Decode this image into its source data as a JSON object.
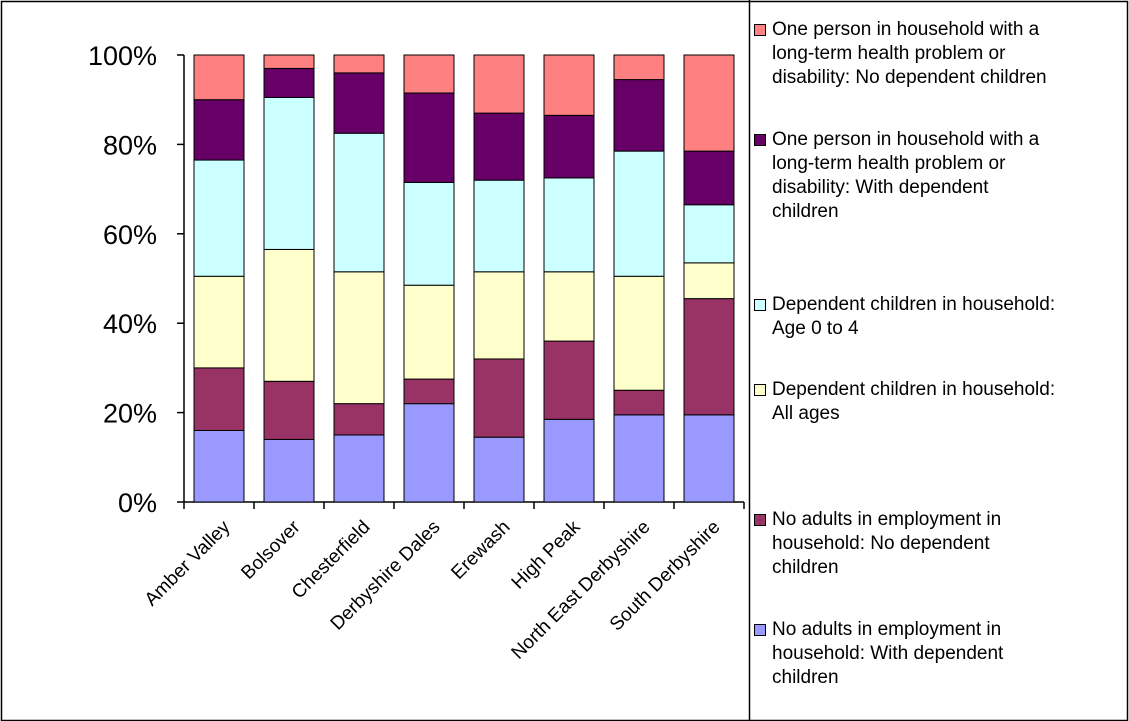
{
  "chart_data": {
    "type": "bar",
    "stacked": true,
    "percent": true,
    "categories": [
      "Amber Valley",
      "Bolsover",
      "Chesterfield",
      "Derbyshire Dales",
      "Erewash",
      "High Peak",
      "North East Derbyshire",
      "South Derbyshire"
    ],
    "y_ticks": [
      "0%",
      "20%",
      "40%",
      "60%",
      "80%",
      "100%"
    ],
    "ylim": [
      0,
      100
    ],
    "grid": false,
    "legend_position": "right",
    "series": [
      {
        "name": "No adults in employment in household: With dependent children",
        "legend_label": "No adults in employment in\nhousehold: With dependent\nchildren",
        "color": "#9999ff",
        "values": [
          16,
          14,
          15,
          22,
          14.5,
          18.5,
          19.5,
          19.5
        ]
      },
      {
        "name": "No adults in employment in household: No dependent children",
        "legend_label": "No adults in employment in\nhousehold: No dependent\nchildren",
        "color": "#993366",
        "values": [
          14,
          13,
          7,
          5.5,
          17.5,
          17.5,
          5.5,
          26
        ]
      },
      {
        "name": "Dependent children in household: All ages",
        "legend_label": "Dependent children in household:\nAll ages",
        "color": "#ffffcc",
        "values": [
          20.5,
          29.5,
          29.5,
          21,
          19.5,
          15.5,
          25.5,
          8
        ]
      },
      {
        "name": "Dependent children in household: Age 0 to 4",
        "legend_label": "Dependent children in household:\nAge 0 to 4",
        "color": "#ccffff",
        "values": [
          26,
          34,
          31,
          23,
          20.5,
          21,
          28,
          13
        ]
      },
      {
        "name": "One person in household with a long-term health problem or disability: With dependent children",
        "legend_label": "One person in household with a\nlong-term health problem or\ndisability: With dependent\nchildren",
        "color": "#660066",
        "values": [
          13.5,
          6.5,
          13.5,
          20,
          15,
          14,
          16,
          12
        ]
      },
      {
        "name": "One person in household with a long-term health problem or disability: No dependent children",
        "legend_label": "One person in household with a\nlong-term health problem or\ndisability: No dependent children",
        "color": "#ff8080",
        "values": [
          10,
          3,
          4,
          8.5,
          13,
          13.5,
          5.5,
          21.5
        ]
      }
    ]
  }
}
